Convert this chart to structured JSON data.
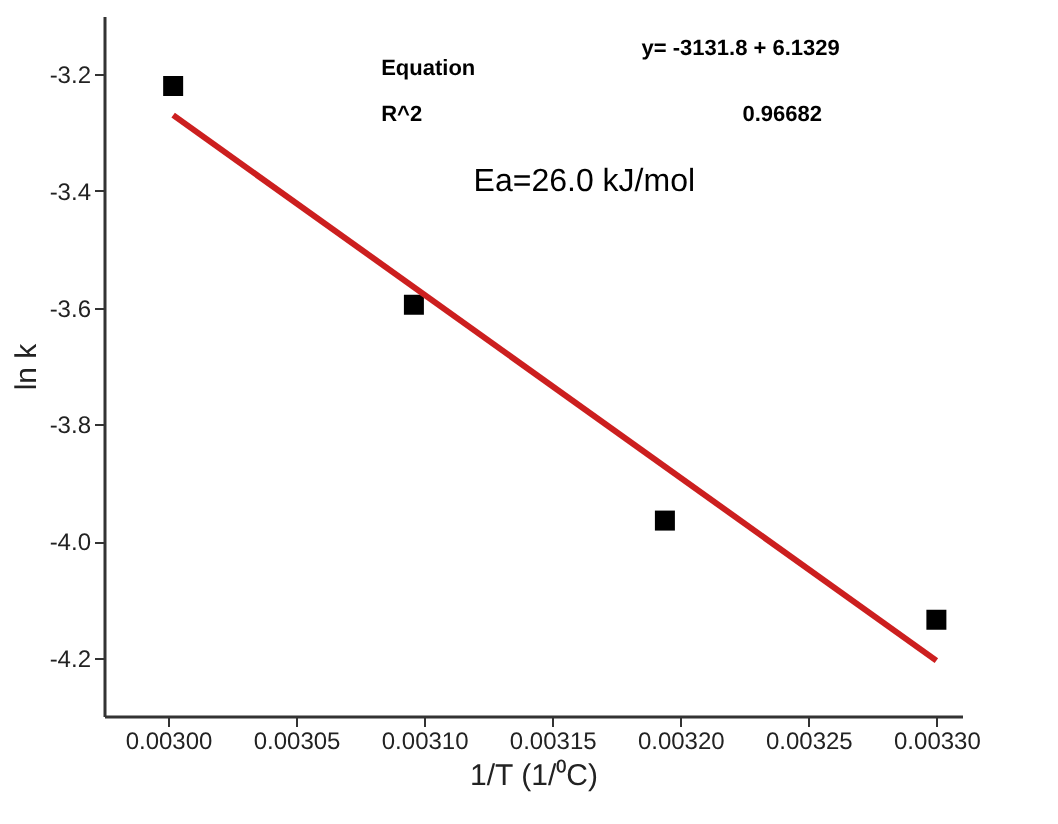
{
  "chart_data": {
    "type": "scatter",
    "xlabel": "1/T (1/⁰C)",
    "ylabel": "ln k",
    "x": [
      0.003002,
      0.003096,
      0.003194,
      0.0033
    ],
    "series": [
      {
        "color": "#000000",
        "marker": "square",
        "values": [
          -3.22,
          -3.595,
          -3.965,
          -4.135
        ]
      },
      {
        "type": "line",
        "color": "#cc1f1f",
        "line_style": "solid",
        "x": [
          0.003002,
          0.0033
        ],
        "values": [
          -3.27,
          -4.205
        ]
      }
    ],
    "xlim": [
      0.002975,
      0.00331
    ],
    "xticks": [
      {
        "value": 0.003,
        "label": "0.00300"
      },
      {
        "value": 0.00305,
        "label": "0.00305"
      },
      {
        "value": 0.0031,
        "label": "0.00310"
      },
      {
        "value": 0.00315,
        "label": "0.00315"
      },
      {
        "value": 0.0032,
        "label": "0.00320"
      },
      {
        "value": 0.00325,
        "label": "0.00325"
      },
      {
        "value": 0.0033,
        "label": "0.00330"
      }
    ],
    "ylim": [
      -4.3,
      -3.1
    ],
    "yticks": [
      {
        "value": -4.2,
        "label": "-4.2"
      },
      {
        "value": -4.0,
        "label": "-4.0"
      },
      {
        "value": -3.8,
        "label": "-3.8"
      },
      {
        "value": -3.6,
        "label": "-3.6"
      },
      {
        "value": -3.4,
        "label": "-3.4"
      },
      {
        "value": -3.2,
        "label": "-3.2"
      }
    ],
    "grid": false,
    "annotations": [
      "Equation",
      "y= -3131.8 + 6.1329",
      "R^2",
      "0.96682",
      "Ea=26.0 kJ/mol"
    ]
  }
}
